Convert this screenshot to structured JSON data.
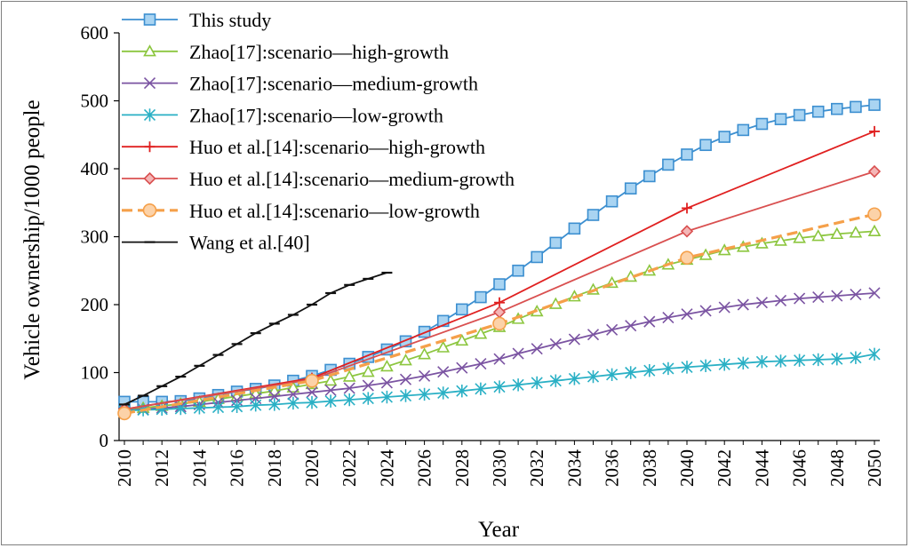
{
  "chart_data": {
    "type": "line",
    "title": "",
    "xlabel": "Year",
    "ylabel": "Vehicle ownership/1000 people",
    "xlim": [
      2010,
      2050
    ],
    "ylim": [
      0,
      600
    ],
    "yticks": [
      0,
      100,
      200,
      300,
      400,
      500,
      600
    ],
    "xticks": [
      2010,
      2012,
      2014,
      2016,
      2018,
      2020,
      2022,
      2024,
      2026,
      2028,
      2030,
      2032,
      2034,
      2036,
      2038,
      2040,
      2042,
      2044,
      2046,
      2048,
      2050
    ],
    "legend_position": "top-left",
    "grid": false,
    "series": [
      {
        "name": "This study",
        "color": "#3c8fd0",
        "marker": "square",
        "dashed": false,
        "x": [
          2010,
          2011,
          2012,
          2013,
          2014,
          2015,
          2016,
          2017,
          2018,
          2019,
          2020,
          2021,
          2022,
          2023,
          2024,
          2025,
          2026,
          2027,
          2028,
          2029,
          2030,
          2031,
          2032,
          2033,
          2034,
          2035,
          2036,
          2037,
          2038,
          2039,
          2040,
          2041,
          2042,
          2043,
          2044,
          2045,
          2046,
          2047,
          2048,
          2049,
          2050
        ],
        "values": [
          57,
          57,
          57,
          58,
          62,
          67,
          72,
          76,
          81,
          88,
          95,
          104,
          113,
          123,
          134,
          146,
          160,
          176,
          193,
          211,
          230,
          250,
          270,
          291,
          312,
          332,
          352,
          371,
          389,
          406,
          421,
          435,
          447,
          457,
          466,
          473,
          479,
          484,
          488,
          491,
          494
        ]
      },
      {
        "name": "Zhao[17]:scenario—high-growth",
        "color": "#8cc63f",
        "marker": "triangle",
        "dashed": false,
        "x": [
          2010,
          2011,
          2012,
          2013,
          2014,
          2015,
          2016,
          2017,
          2018,
          2019,
          2020,
          2021,
          2022,
          2023,
          2024,
          2025,
          2026,
          2027,
          2028,
          2029,
          2030,
          2031,
          2032,
          2033,
          2034,
          2035,
          2036,
          2037,
          2038,
          2039,
          2040,
          2041,
          2042,
          2043,
          2044,
          2045,
          2046,
          2047,
          2048,
          2049,
          2050
        ],
        "values": [
          46,
          48,
          51,
          54,
          57,
          61,
          65,
          69,
          73,
          78,
          83,
          88,
          94,
          101,
          109,
          118,
          127,
          137,
          147,
          157,
          167,
          179,
          190,
          201,
          212,
          222,
          232,
          241,
          250,
          259,
          266,
          273,
          280,
          285,
          290,
          294,
          298,
          301,
          304,
          306,
          308
        ]
      },
      {
        "name": "Zhao[17]:scenario—medium-growth",
        "color": "#7b54a2",
        "marker": "x",
        "dashed": false,
        "x": [
          2010,
          2011,
          2012,
          2013,
          2014,
          2015,
          2016,
          2017,
          2018,
          2019,
          2020,
          2021,
          2022,
          2023,
          2024,
          2025,
          2026,
          2027,
          2028,
          2029,
          2030,
          2031,
          2032,
          2033,
          2034,
          2035,
          2036,
          2037,
          2038,
          2039,
          2040,
          2041,
          2042,
          2043,
          2044,
          2045,
          2046,
          2047,
          2048,
          2049,
          2050
        ],
        "values": [
          44,
          46,
          48,
          50,
          53,
          56,
          59,
          62,
          65,
          68,
          71,
          74,
          77,
          81,
          85,
          90,
          95,
          101,
          107,
          113,
          120,
          128,
          135,
          142,
          149,
          156,
          163,
          169,
          175,
          181,
          186,
          191,
          196,
          200,
          203,
          206,
          209,
          211,
          213,
          215,
          217
        ]
      },
      {
        "name": "Zhao[17]:scenario—low-growth",
        "color": "#2ab0c5",
        "marker": "asterisk",
        "dashed": false,
        "x": [
          2010,
          2011,
          2012,
          2013,
          2014,
          2015,
          2016,
          2017,
          2018,
          2019,
          2020,
          2021,
          2022,
          2023,
          2024,
          2025,
          2026,
          2027,
          2028,
          2029,
          2030,
          2031,
          2032,
          2033,
          2034,
          2035,
          2036,
          2037,
          2038,
          2039,
          2040,
          2041,
          2042,
          2043,
          2044,
          2045,
          2046,
          2047,
          2048,
          2049,
          2050
        ],
        "values": [
          44,
          45,
          46,
          47,
          48,
          49,
          50,
          52,
          53,
          55,
          56,
          58,
          60,
          62,
          64,
          66,
          68,
          70,
          73,
          76,
          79,
          82,
          85,
          88,
          91,
          94,
          97,
          100,
          103,
          106,
          108,
          110,
          112,
          114,
          116,
          117,
          118,
          119,
          120,
          122,
          127
        ]
      },
      {
        "name": "Huo et al.[14]:scenario—high-growth",
        "color": "#e02020",
        "marker": "plus",
        "dashed": false,
        "x": [
          2010,
          2020,
          2030,
          2040,
          2050
        ],
        "values": [
          46,
          92,
          203,
          342,
          455
        ]
      },
      {
        "name": "Huo et al.[14]:scenario—medium-growth",
        "color": "#d95050",
        "marker": "diamond",
        "dashed": false,
        "x": [
          2010,
          2020,
          2030,
          2040,
          2050
        ],
        "values": [
          46,
          90,
          189,
          308,
          396
        ]
      },
      {
        "name": "Huo et al.[14]:scenario—low-growth",
        "color": "#f5a04a",
        "marker": "circle",
        "dashed": true,
        "x": [
          2010,
          2020,
          2030,
          2040,
          2050
        ],
        "values": [
          40,
          88,
          172,
          269,
          333
        ]
      },
      {
        "name": "Wang et al.[40]",
        "color": "#111111",
        "marker": "dash",
        "dashed": false,
        "x": [
          2010,
          2011,
          2012,
          2013,
          2014,
          2015,
          2016,
          2017,
          2018,
          2019,
          2020,
          2021,
          2022,
          2023,
          2024
        ],
        "values": [
          53,
          66,
          80,
          94,
          110,
          126,
          142,
          158,
          172,
          185,
          200,
          217,
          229,
          238,
          247
        ]
      }
    ]
  }
}
